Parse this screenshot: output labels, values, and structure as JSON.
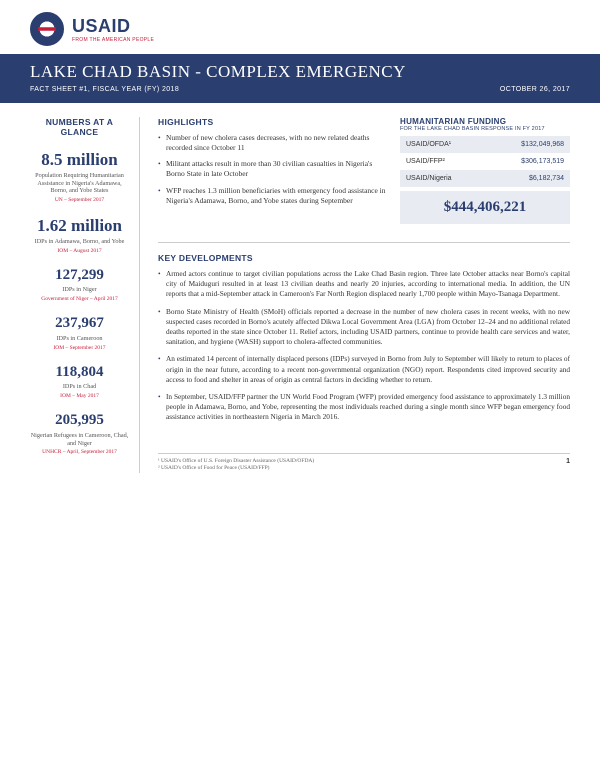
{
  "logo": {
    "main": "USAID",
    "sub": "FROM THE AMERICAN PEOPLE"
  },
  "banner": {
    "title": "LAKE CHAD BASIN - COMPLEX EMERGENCY",
    "left": "FACT SHEET #1, FISCAL YEAR (FY) 2018",
    "right": "OCTOBER 26, 2017"
  },
  "colors": {
    "brand_blue": "#2a3e6f",
    "brand_red": "#c41e3a",
    "panel_bg": "#e8ecf2",
    "divider": "#cccccc",
    "body_text": "#333333",
    "muted_text": "#555555"
  },
  "sidebar": {
    "heading": "NUMBERS AT A GLANCE",
    "stats": [
      {
        "num": "8.5 million",
        "desc": "Population Requiring Humanitarian Assistance in Nigeria's Adamawa, Borno, and Yobe States",
        "src": "UN – September 2017"
      },
      {
        "num": "1.62 million",
        "desc": "IDPs in Adamawa, Borno, and Yobe",
        "src": "IOM – August 2017"
      },
      {
        "num": "127,299",
        "desc": "IDPs in Niger",
        "src": "Government of Niger – April 2017"
      },
      {
        "num": "237,967",
        "desc": "IDPs in Cameroon",
        "src": "IOM – September 2017"
      },
      {
        "num": "118,804",
        "desc": "IDPs in Chad",
        "src": "IOM – May 2017"
      },
      {
        "num": "205,995",
        "desc": "Nigerian Refugees in Cameroon, Chad, and Niger",
        "src": "UNHCR – April, September 2017"
      }
    ]
  },
  "highlights": {
    "heading": "HIGHLIGHTS",
    "items": [
      "Number of new cholera cases decreases, with no new related deaths recorded since October 11",
      "Militant attacks result in more than 30 civilian casualties in Nigeria's Borno State in late October",
      "WFP reaches 1.3 million beneficiaries with emergency food assistance in Nigeria's Adamawa, Borno, and Yobe states during September"
    ]
  },
  "funding": {
    "heading": "HUMANITARIAN FUNDING",
    "subheading": "FOR THE LAKE CHAD BASIN RESPONSE IN FY 2017",
    "rows": [
      {
        "label": "USAID/OFDA¹",
        "value": "$132,049,968"
      },
      {
        "label": "USAID/FFP²",
        "value": "$306,173,519"
      },
      {
        "label": "USAID/Nigeria",
        "value": "$6,182,734"
      }
    ],
    "total": "$444,406,221"
  },
  "keydev": {
    "heading": "KEY DEVELOPMENTS",
    "items": [
      "Armed actors continue to target civilian populations across the Lake Chad Basin region. Three late October attacks near Borno's capital city of Maiduguri resulted in at least 13 civilian deaths and nearly 20 injuries, according to international media. In addition, the UN reports that a mid-September attack in Cameroon's Far North Region displaced nearly 1,700 people within Mayo-Tsanaga Department.",
      "Borno State Ministry of Health (SMoH) officials reported a decrease in the number of new cholera cases in recent weeks, with no new suspected cases recorded in Borno's acutely affected Dikwa Local Government Area (LGA) from October 12–24 and no additional related deaths reported in the state since October 11. Relief actors, including USAID partners, continue to provide health care services and water, sanitation, and hygiene (WASH) support to cholera-affected communities.",
      "An estimated 14 percent of internally displaced persons (IDPs) surveyed in Borno from July to September will likely to return to places of origin in the near future, according to a recent non-governmental organization (NGO) report. Respondents cited improved security and access to food and shelter in areas of origin as central factors in deciding whether to return.",
      "In September, USAID/FFP partner the UN World Food Program (WFP) provided emergency food assistance to approximately 1.3 million people in Adamawa, Borno, and Yobe, representing the most individuals reached during a single month since WFP began emergency food assistance activities in northeastern Nigeria in March 2016."
    ]
  },
  "footnotes": [
    "¹ USAID's Office of U.S. Foreign Disaster Assistance (USAID/OFDA)",
    "² USAID's Office of Food for Peace (USAID/FFP)"
  ],
  "pagenum": "1"
}
